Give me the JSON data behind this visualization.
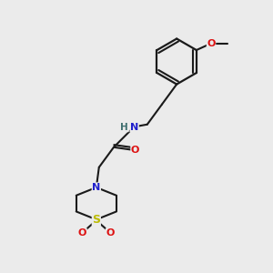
{
  "bg_color": "#ebebeb",
  "bond_color": "#1a1a1a",
  "atom_colors": {
    "N": "#2020cc",
    "O": "#dd1111",
    "S": "#bbbb00",
    "H": "#407070",
    "C": "#1a1a1a"
  }
}
